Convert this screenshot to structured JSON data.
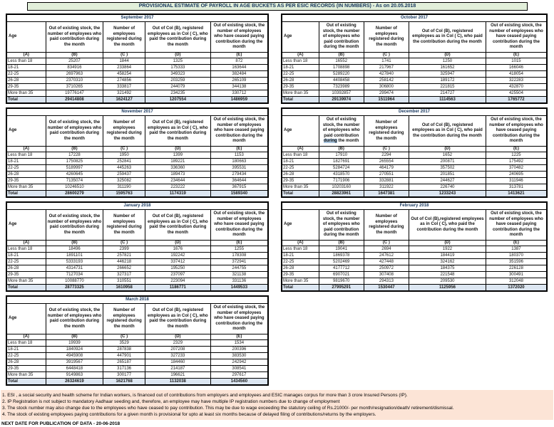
{
  "title": "PROVISIONAL ESTIMATE OF PAYROLL IN AGE BUCKETS AS PER ESIC RECORDS (IN NUMBERS) - As on 20.05.2018",
  "columns_letters": [
    "(A)",
    "(B)",
    "(C )",
    "(D)",
    "(E)"
  ],
  "tables": [
    {
      "month": "September 2017",
      "headers": {
        "age": "Age",
        "b_pre": "Out of existing stock, the number of employees who paid contribution during the month",
        "b_hl": "",
        "b_post": "",
        "c": "Number of employees registered during the month",
        "d": "Out of Col (B), registered employees as in Col ( C), who paid the contribution during the month",
        "e": "Out of existing stock, the number of employees who have ceased paying contribution during the month"
      },
      "rows": [
        [
          "Less than 18",
          "25207",
          "1844",
          "1325",
          "872"
        ],
        [
          "18-21",
          "834916",
          "233864",
          "175333",
          "163644"
        ],
        [
          "22-25",
          "2697963",
          "458254",
          "349323",
          "382484"
        ],
        [
          "26-28",
          "2370310",
          "274856",
          "203259",
          "265109"
        ],
        [
          "29-35",
          "3710265",
          "333817",
          "244079",
          "344138"
        ],
        [
          "More than 35",
          "19776147",
          "321492",
          "234235",
          "330712"
        ]
      ],
      "total": [
        "Total",
        "29414808",
        "1624127",
        "1207554",
        "1486959"
      ]
    },
    {
      "month": "October 2017",
      "headers": {
        "age": "Age",
        "b_pre": "Out of existing stock, the number of employees who paid contribution during the month",
        "b_hl": "",
        "b_post": "",
        "c": "Number of employees registered during the month",
        "d": "Out of Col (B),  registered employees as in Col ( C), who paid the contribution during the month",
        "e": "Out of existing stock, the number of employees who have ceased paying contribution during the month"
      },
      "rows": [
        [
          "Less than 18",
          "16552",
          "1741",
          "1250",
          "1015"
        ],
        [
          "18-21",
          "1708898",
          "217967",
          "161652",
          "166046"
        ],
        [
          "22-25",
          "5289220",
          "427840",
          "325947",
          "418054"
        ],
        [
          "26-28",
          "4408458",
          "258142",
          "189172",
          "322283"
        ],
        [
          "29-35",
          "7323989",
          "306800",
          "221815",
          "432870"
        ],
        [
          "More than 35",
          "10392857",
          "299474",
          "214727",
          "425504"
        ]
      ],
      "total": [
        "Total",
        "29139974",
        "1511964",
        "1114563",
        "1765772"
      ]
    },
    {
      "month": "November 2017",
      "headers": {
        "age": "Age",
        "b_pre": "Out of existing stock, the number of employees who paid contribution during the month",
        "b_hl": "",
        "b_post": "",
        "c": "Number of employees registered during the month",
        "d": "Out of Col (B), registered employees as in Col ( C), who paid the contribution during the month",
        "e": "Out of existing stock, the number of employees who have ceased paying contribution during the month"
      },
      "rows": [
        [
          "Less than 18",
          "17228",
          "1950",
          "1399",
          "1153"
        ],
        [
          "18-21",
          "1750825",
          "252841",
          "189221",
          "180663"
        ],
        [
          "22-25",
          "5189997",
          "445263",
          "336360",
          "395531"
        ],
        [
          "26-28",
          "4260645",
          "259437",
          "189473",
          "279434"
        ],
        [
          "29-35",
          "7135074",
          "325082",
          "234644",
          "364644"
        ],
        [
          "More than 35",
          "10246510",
          "311190",
          "223222",
          "367915"
        ]
      ],
      "total": [
        "Total",
        "28600279",
        "1595763",
        "1174319",
        "1589340"
      ]
    },
    {
      "month": "December 2017",
      "headers": {
        "age": "Age",
        "b_pre": "Out of existing stock, the number of employees who paid contribution ",
        "b_hl": "during",
        "b_post": " the month",
        "c": "Number of employees registered during the month",
        "d": "Out of Col (B), registered employees as in Col ( C), who paid the contribution during the month",
        "e": "Out of existing stock, the number of employees who have ceased paying contribution during the month"
      },
      "rows": [
        [
          "Less than 18",
          "17910",
          "2294",
          "1652",
          "1225"
        ],
        [
          "18-21",
          "1827691",
          "265554",
          "200871",
          "175492"
        ],
        [
          "22-25",
          "5284724",
          "464179",
          "357502",
          "370482"
        ],
        [
          "26-28",
          "4318570",
          "270551",
          "201851",
          "240695"
        ],
        [
          "29-35",
          "7171906",
          "332881",
          "244627",
          "311946"
        ],
        [
          "More than 35",
          "10203160",
          "311922",
          "226740",
          "313781"
        ]
      ],
      "total": [
        "Total",
        "28823961",
        "1647381",
        "1233243",
        "1413621"
      ]
    },
    {
      "month": "January 2018",
      "headers": {
        "age": "Age",
        "b_pre": "Out of existing stock, the number of employees who paid contribution during the month",
        "b_hl": "",
        "b_post": "",
        "c": "Number of employees registered during the month",
        "d": "Out of Col (B), registered employees as in Col ( C), who paid the contribution during the month",
        "e": "Out of existing stock, the number of employees who have ceased paying contribution during the month"
      },
      "rows": [
        [
          "Less than 18",
          "18496",
          "2399",
          "1676",
          "1255"
        ],
        [
          "18-21",
          "1891101",
          "257821",
          "192242",
          "178308"
        ],
        [
          "22-25",
          "5333193",
          "446218",
          "337412",
          "372941"
        ],
        [
          "26-28",
          "4314731",
          "266652",
          "195250",
          "244755"
        ],
        [
          "29-35",
          "7127034",
          "327317",
          "237097",
          "321138"
        ],
        [
          "More than 35",
          "10088770",
          "310551",
          "223094",
          "331136"
        ]
      ],
      "total": [
        "Total",
        "28773325",
        "1610958",
        "1186771",
        "1449533"
      ]
    },
    {
      "month": "February 2018",
      "headers": {
        "age": "Age",
        "b_pre": "Out of existing stock, the number of employees who paid contribution during the month",
        "b_hl": "",
        "b_post": "",
        "c": "Number of employees registered during the month",
        "d": "Out of Col (B),registered employees as in Col ( C), who paid the contribution during the month",
        "e": "Out of existing stock, the number of employees who have ceased paying contribution during the month"
      },
      "rows": [
        [
          "Less than 18",
          "19041",
          "2694",
          "1922",
          "1387"
        ],
        [
          "18-21",
          "1869378",
          "247612",
          "184419",
          "180370"
        ],
        [
          "22-25",
          "5202469",
          "427448",
          "324162",
          "351596"
        ],
        [
          "26-28",
          "4177712",
          "250972",
          "184375",
          "226128"
        ],
        [
          "29-35",
          "6907021",
          "307408",
          "221548",
          "300491"
        ],
        [
          "More than 35",
          "9819670",
          "294313",
          "209530",
          "312048"
        ]
      ],
      "total": [
        "Total",
        "27995291",
        "1530447",
        "1125956",
        "1372020"
      ]
    },
    {
      "month": "March 2018",
      "headers": {
        "age": "Age",
        "b_pre": "Out of existing stock, the number of employees who paid contribution during the month",
        "b_hl": "",
        "b_post": "",
        "c": "Number of employees registered during the month",
        "d": "Out of Col (B), registered employees as in Col ( C), who paid the contribution during the month",
        "e": "Out of existing stock, the number of employees who have ceased paying contribution during the month"
      },
      "rows": [
        [
          "Less than 18",
          "19939",
          "3529",
          "2329",
          "1534"
        ],
        [
          "18-21",
          "1840924",
          "287838",
          "207208",
          "200396"
        ],
        [
          "22-25",
          "4945908",
          "447901",
          "327233",
          "383530"
        ],
        [
          "26-28",
          "3919567",
          "265187",
          "184460",
          "242942"
        ],
        [
          "29-35",
          "6448418",
          "317136",
          "214187",
          "308541"
        ],
        [
          "More than 35",
          "9149863",
          "300177",
          "196621",
          "297617"
        ]
      ],
      "total": [
        "Total",
        "26324619",
        "1621768",
        "1132038",
        "1434560"
      ]
    }
  ],
  "footnotes": [
    "1. ESI , a social security and health scheme for Indian workers, is financed out of contributions from employers and employees and ESIC manages corpus for more than 3 crore Insured Persons (IP).",
    "2. IP Registration is not subject to mandatory Aadhaar seeding and, therefore, an employee may have multiple IP registration numbers due to change of employment",
    "3. The stock number may also change due to the employees who have ceased to pay contribution. This may  be due to wage exceeding the statutory ceiling of  Rs.21000/- per month/resignation/death/ retirement/dismissal.",
    "4. The stock of existing employees paying contributions for a given month is provisional for upto at least six months because of delayed filing of contributions/returns by the employers."
  ],
  "next_date": "NEXT DATE FOR PUBLICATION OF DATA - 20-06-2018",
  "colors": {
    "title_bg": "#e2efda",
    "title_text": "#17375e",
    "total_row_bg": "#dce6f1",
    "notes_bg": "#fce4d6",
    "selection_highlight": "#a9c5de"
  }
}
